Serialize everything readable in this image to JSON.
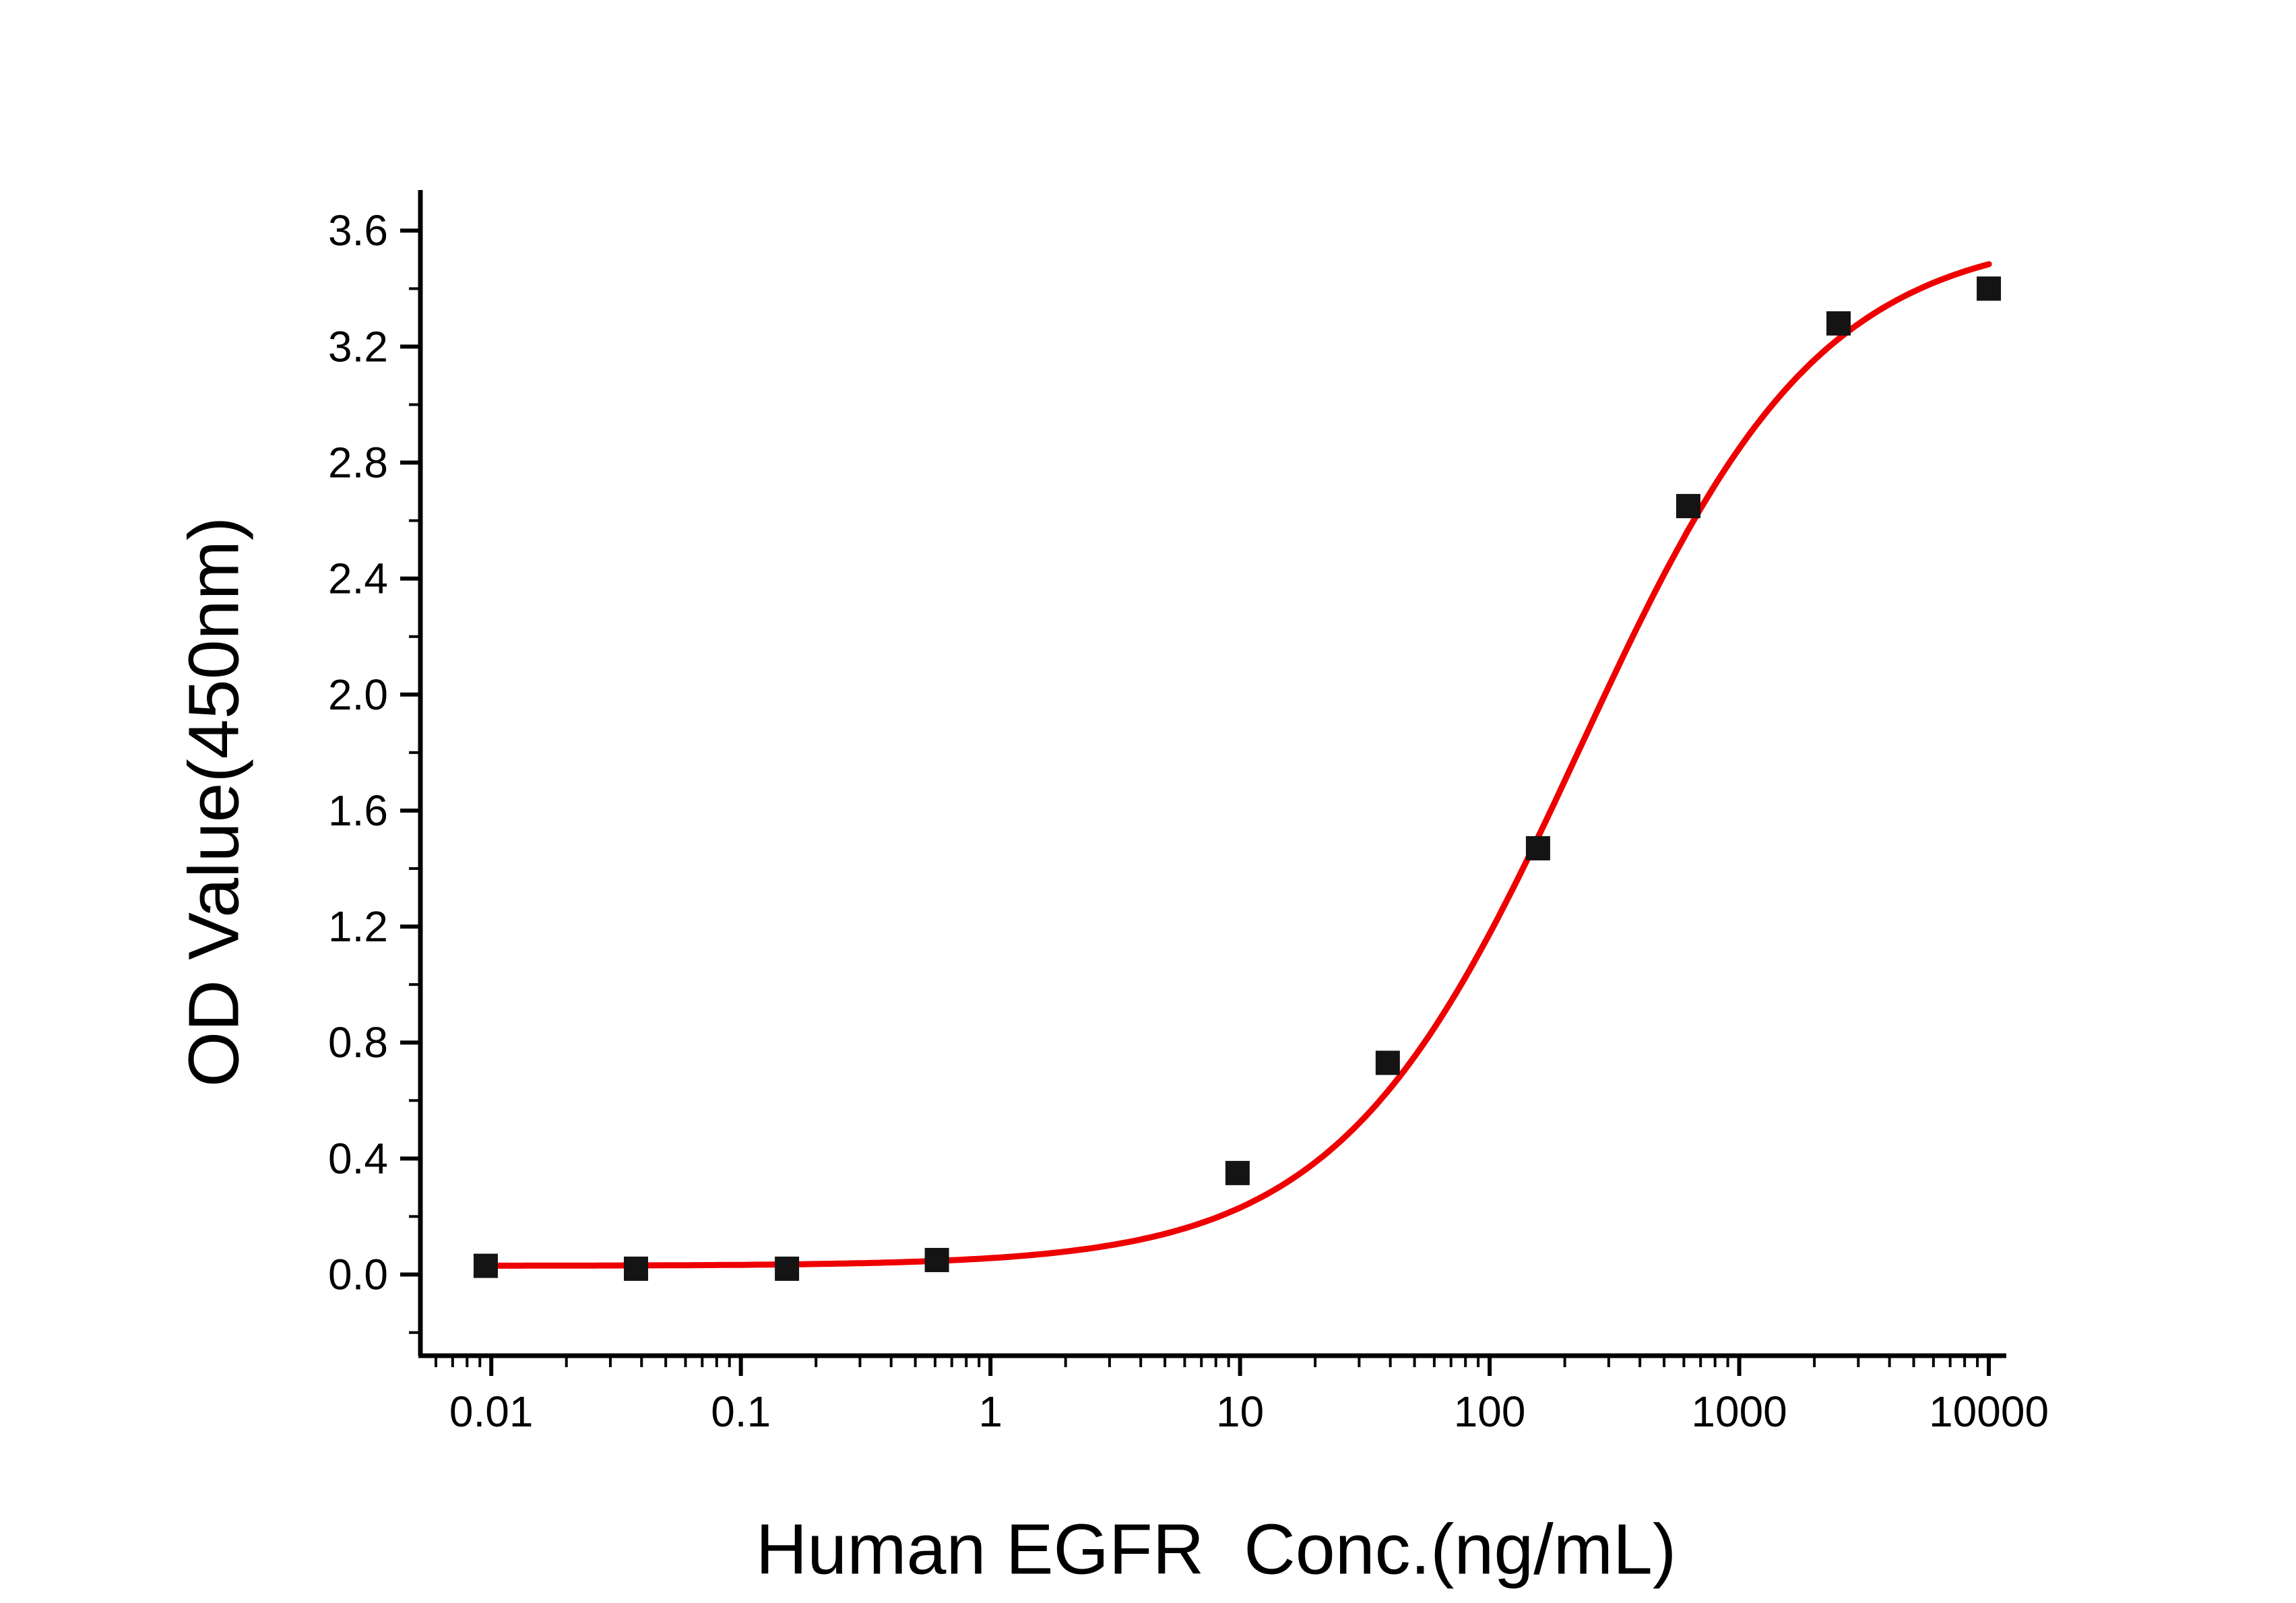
{
  "colors": {
    "background": "#ffffff",
    "axis": "#000000",
    "tick_label": "#000000",
    "curve_red": "#ee0000",
    "point_black": "#141414"
  },
  "chart_data": {
    "type": "scatter",
    "title": "",
    "xlabel": "Human EGFR  Conc.(ng/mL)",
    "ylabel": "OD Value(450nm)",
    "x_scale": "log",
    "y_scale": "linear",
    "grid": false,
    "legend": false,
    "xlim": [
      0.0052,
      11750
    ],
    "ylim": [
      -0.28,
      3.74
    ],
    "x_ticks": [
      0.01,
      0.1,
      1,
      10,
      100,
      1000,
      10000
    ],
    "x_tick_labels": [
      "0.01",
      "0.1",
      "1",
      "10",
      "100",
      "1000",
      "10000"
    ],
    "y_ticks": [
      0.0,
      0.4,
      0.8,
      1.2,
      1.6,
      2.0,
      2.4,
      2.8,
      3.2,
      3.6
    ],
    "y_tick_labels": [
      "0.0",
      "0.4",
      "0.8",
      "1.2",
      "1.6",
      "2.0",
      "2.4",
      "2.8",
      "3.2",
      "3.6"
    ],
    "y_minor_ticks": [
      -0.2,
      0.2,
      0.6,
      1.0,
      1.4,
      1.8,
      2.2,
      2.6,
      3.0,
      3.4
    ],
    "points": [
      {
        "x": 0.0095,
        "y": 0.03
      },
      {
        "x": 0.038,
        "y": 0.02
      },
      {
        "x": 0.153,
        "y": 0.02
      },
      {
        "x": 0.61,
        "y": 0.05
      },
      {
        "x": 9.77,
        "y": 0.35
      },
      {
        "x": 39.06,
        "y": 0.73
      },
      {
        "x": 156.25,
        "y": 1.47
      },
      {
        "x": 625,
        "y": 2.65
      },
      {
        "x": 2500,
        "y": 3.28
      },
      {
        "x": 10000,
        "y": 3.4
      }
    ],
    "fit_curve": {
      "model": "4PL",
      "bottom": 0.03,
      "top": 3.6,
      "ec50": 230,
      "hill": 0.9,
      "x_start": 0.0095,
      "x_end": 10000
    }
  }
}
